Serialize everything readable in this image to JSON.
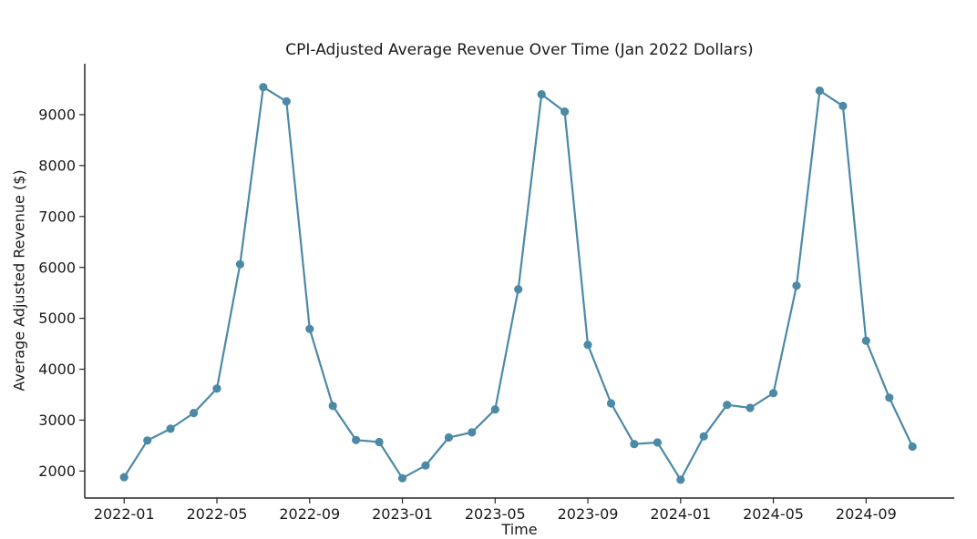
{
  "chart_data": {
    "type": "line",
    "title": "CPI-Adjusted Average Revenue Over Time (Jan 2022 Dollars)",
    "xlabel": "Time",
    "ylabel": "Average Adjusted Revenue ($)",
    "categories": [
      "2022-01",
      "2022-02",
      "2022-03",
      "2022-04",
      "2022-05",
      "2022-06",
      "2022-07",
      "2022-08",
      "2022-09",
      "2022-10",
      "2022-11",
      "2022-12",
      "2023-01",
      "2023-02",
      "2023-03",
      "2023-04",
      "2023-05",
      "2023-06",
      "2023-07",
      "2023-08",
      "2023-09",
      "2023-10",
      "2023-11",
      "2023-12",
      "2024-01",
      "2024-02",
      "2024-03",
      "2024-04",
      "2024-05",
      "2024-06",
      "2024-07",
      "2024-08",
      "2024-09",
      "2024-10",
      "2024-11"
    ],
    "values": [
      1880,
      2600,
      2830,
      3140,
      3620,
      6060,
      9540,
      9260,
      4790,
      3280,
      2610,
      2570,
      1860,
      2110,
      2660,
      2760,
      3210,
      5570,
      9400,
      9060,
      4480,
      3330,
      2530,
      2560,
      1830,
      2680,
      3300,
      3240,
      3530,
      5640,
      9470,
      9170,
      4560,
      3440,
      2480
    ],
    "x_tick_labels": [
      "2022-01",
      "2022-05",
      "2022-09",
      "2023-01",
      "2023-05",
      "2023-09",
      "2024-01",
      "2024-05",
      "2024-09"
    ],
    "x_tick_indices": [
      0,
      4,
      8,
      12,
      16,
      20,
      24,
      28,
      32
    ],
    "y_ticks": [
      2000,
      3000,
      4000,
      5000,
      6000,
      7000,
      8000,
      9000
    ],
    "ylim": [
      1470,
      10000
    ],
    "xlim_index": [
      -1.7,
      35.8
    ],
    "grid": false,
    "legend_position": "none",
    "line_color": "#4c89a6",
    "marker": "o",
    "axis_color": "#262626",
    "background": "#ffffff"
  }
}
